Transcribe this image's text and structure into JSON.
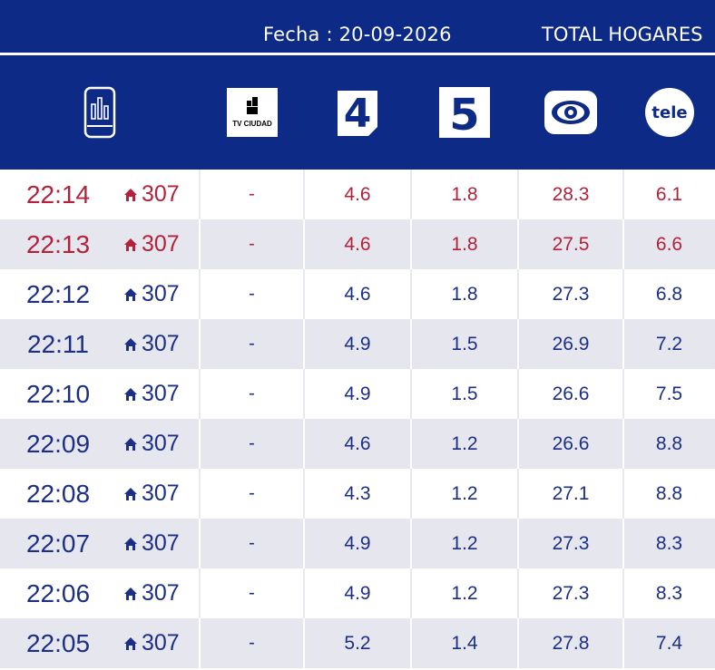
{
  "header": {
    "date_label": "Fecha : 20-09-2026",
    "scope_label": "TOTAL HOGARES"
  },
  "channels": [
    {
      "name": "tv-ciudad",
      "label": "TV CIUDAD"
    },
    {
      "name": "canal-4",
      "label": "4"
    },
    {
      "name": "canal-5",
      "label": "5"
    },
    {
      "name": "canal-10",
      "label": ""
    },
    {
      "name": "canal-12",
      "label": "tele"
    }
  ],
  "colors": {
    "navy": "#0c2a86",
    "red": "#b3213a",
    "blue": "#1c2f86",
    "stripe": "#e6e6ee"
  },
  "rows": [
    {
      "time": "22:14",
      "homes": "307",
      "tvciudad": "-",
      "c4": "4.6",
      "c5": "1.8",
      "c10": "28.3",
      "c12": "6.1",
      "color": "red"
    },
    {
      "time": "22:13",
      "homes": "307",
      "tvciudad": "-",
      "c4": "4.6",
      "c5": "1.8",
      "c10": "27.5",
      "c12": "6.6",
      "color": "red"
    },
    {
      "time": "22:12",
      "homes": "307",
      "tvciudad": "-",
      "c4": "4.6",
      "c5": "1.8",
      "c10": "27.3",
      "c12": "6.8",
      "color": "blue"
    },
    {
      "time": "22:11",
      "homes": "307",
      "tvciudad": "-",
      "c4": "4.9",
      "c5": "1.5",
      "c10": "26.9",
      "c12": "7.2",
      "color": "blue"
    },
    {
      "time": "22:10",
      "homes": "307",
      "tvciudad": "-",
      "c4": "4.9",
      "c5": "1.5",
      "c10": "26.6",
      "c12": "7.5",
      "color": "blue"
    },
    {
      "time": "22:09",
      "homes": "307",
      "tvciudad": "-",
      "c4": "4.6",
      "c5": "1.2",
      "c10": "26.6",
      "c12": "8.8",
      "color": "blue"
    },
    {
      "time": "22:08",
      "homes": "307",
      "tvciudad": "-",
      "c4": "4.3",
      "c5": "1.2",
      "c10": "27.1",
      "c12": "8.8",
      "color": "blue"
    },
    {
      "time": "22:07",
      "homes": "307",
      "tvciudad": "-",
      "c4": "4.9",
      "c5": "1.2",
      "c10": "27.3",
      "c12": "8.3",
      "color": "blue"
    },
    {
      "time": "22:06",
      "homes": "307",
      "tvciudad": "-",
      "c4": "4.9",
      "c5": "1.2",
      "c10": "27.3",
      "c12": "8.3",
      "color": "blue"
    },
    {
      "time": "22:05",
      "homes": "307",
      "tvciudad": "-",
      "c4": "5.2",
      "c5": "1.4",
      "c10": "27.8",
      "c12": "7.4",
      "color": "blue"
    }
  ]
}
